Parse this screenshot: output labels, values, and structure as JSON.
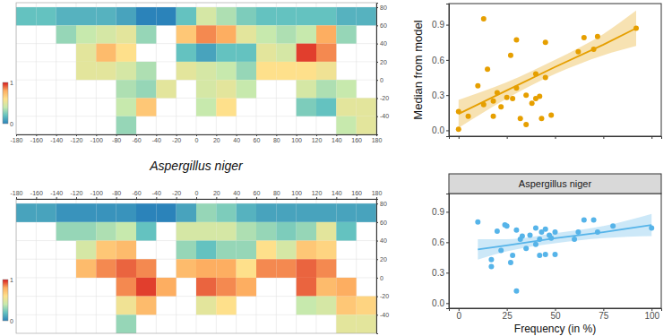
{
  "chart_data": [
    {
      "type": "heatmap",
      "xlim": [
        -180,
        180
      ],
      "ylim": [
        -60,
        85
      ],
      "xticks": [
        -180,
        -160,
        -140,
        -120,
        -100,
        -80,
        -60,
        -40,
        -20,
        0,
        20,
        40,
        60,
        80,
        100,
        120,
        140,
        160,
        180
      ],
      "yticks": [
        -40,
        -20,
        0,
        20,
        40,
        60,
        80
      ],
      "grid": true,
      "xbins": [
        -180,
        -160,
        -140,
        -120,
        -100,
        -80,
        -60,
        -40,
        -20,
        0,
        20,
        40,
        60,
        80,
        100,
        120,
        140,
        160,
        180
      ],
      "ybins": [
        80,
        60,
        40,
        20,
        0,
        -20,
        -40,
        -60
      ],
      "cells": [
        [
          0.2,
          0.2,
          0.15,
          0.15,
          0.15,
          0.1,
          0.0,
          0.0,
          0.2,
          0.45,
          0.35,
          0.25,
          0.2,
          0.2,
          0.2,
          0.2,
          0.15,
          0.15
        ],
        [
          null,
          null,
          0.3,
          0.4,
          0.45,
          0.5,
          0.3,
          null,
          0.7,
          0.85,
          0.8,
          0.5,
          0.4,
          0.35,
          0.4,
          0.8,
          0.3,
          null
        ],
        [
          null,
          null,
          null,
          0.5,
          0.75,
          0.6,
          null,
          null,
          0.2,
          0.1,
          0.2,
          0.2,
          0.5,
          0.45,
          0.95,
          0.85,
          null,
          null
        ],
        [
          null,
          null,
          null,
          0.5,
          0.5,
          0.45,
          0.35,
          null,
          0.5,
          0.45,
          0.4,
          0.3,
          0.6,
          0.6,
          0.6,
          0.55,
          null,
          null
        ],
        [
          null,
          null,
          null,
          null,
          null,
          0.35,
          0.3,
          0.5,
          null,
          0.45,
          0.5,
          0.4,
          null,
          null,
          0.45,
          0.35,
          0.4,
          null
        ],
        [
          null,
          null,
          null,
          null,
          null,
          0.4,
          0.7,
          null,
          null,
          0.4,
          0.6,
          null,
          null,
          null,
          0.25,
          0.2,
          0.5,
          0.5
        ],
        [
          null,
          null,
          null,
          null,
          null,
          0.3,
          null,
          null,
          null,
          null,
          null,
          null,
          null,
          null,
          null,
          null,
          0.4,
          0.5
        ]
      ],
      "colorbar_range": [
        0,
        1
      ],
      "colorbar_ticks": [
        0,
        1
      ]
    },
    {
      "type": "heatmap",
      "title": "Aspergillus niger",
      "xlim": [
        -180,
        180
      ],
      "ylim": [
        -60,
        85
      ],
      "xticks": [
        -180,
        -160,
        -140,
        -120,
        -100,
        -80,
        -60,
        -40,
        -20,
        0,
        20,
        40,
        60,
        80,
        100,
        120,
        140,
        160,
        180
      ],
      "yticks": [
        -40,
        -20,
        0,
        20,
        40,
        60,
        80
      ],
      "grid": true,
      "xbins": [
        -180,
        -160,
        -140,
        -120,
        -100,
        -80,
        -60,
        -40,
        -20,
        0,
        20,
        40,
        60,
        80,
        100,
        120,
        140,
        160,
        180
      ],
      "ybins": [
        80,
        60,
        40,
        20,
        0,
        -20,
        -40,
        -60
      ],
      "cells": [
        [
          0.1,
          0.1,
          0.05,
          0.05,
          0.05,
          0.05,
          0.0,
          0.0,
          0.1,
          0.3,
          0.25,
          0.15,
          0.1,
          0.1,
          0.1,
          0.1,
          0.1,
          0.1
        ],
        [
          null,
          null,
          0.3,
          0.3,
          0.35,
          0.4,
          0.2,
          null,
          0.45,
          0.45,
          0.45,
          0.35,
          0.3,
          0.25,
          0.3,
          0.5,
          0.2,
          null
        ],
        [
          null,
          null,
          null,
          0.45,
          0.7,
          0.75,
          null,
          null,
          0.3,
          0.2,
          0.3,
          0.3,
          0.6,
          0.45,
          0.7,
          0.65,
          null,
          null
        ],
        [
          null,
          null,
          null,
          0.75,
          0.85,
          0.9,
          0.85,
          null,
          0.75,
          0.8,
          0.8,
          0.6,
          0.85,
          0.85,
          0.9,
          0.85,
          null,
          null
        ],
        [
          null,
          null,
          null,
          null,
          null,
          0.85,
          0.95,
          0.8,
          null,
          0.9,
          0.85,
          0.8,
          null,
          null,
          0.9,
          0.75,
          0.8,
          null
        ],
        [
          null,
          null,
          null,
          null,
          null,
          0.55,
          0.75,
          null,
          null,
          0.5,
          0.6,
          null,
          null,
          null,
          0.4,
          0.45,
          0.7,
          0.65
        ],
        [
          null,
          null,
          null,
          null,
          null,
          0.3,
          null,
          null,
          null,
          null,
          null,
          null,
          null,
          null,
          null,
          null,
          0.5,
          0.5
        ]
      ],
      "colorbar_range": [
        0,
        1
      ],
      "colorbar_ticks": [
        0,
        1
      ]
    },
    {
      "type": "scatter",
      "ylabel": "Median from model",
      "xlim": [
        -5,
        105
      ],
      "ylim": [
        -0.05,
        1.08
      ],
      "xticks": [
        0,
        25,
        50,
        75,
        100
      ],
      "yticks": [
        {
          "value": 0,
          "label": "0.0"
        },
        0.3,
        0.6,
        0.9
      ],
      "tick_labels": "y",
      "series": [
        {
          "type": "scatter",
          "marker": "circle",
          "color": "#E69F00",
          "x": [
            0,
            0,
            5,
            10,
            13,
            13,
            15,
            18,
            18,
            20,
            22,
            25,
            27,
            28,
            30,
            30,
            32,
            35,
            35,
            38,
            40,
            40,
            42,
            43,
            45,
            45,
            48,
            62,
            65,
            70,
            72,
            92
          ],
          "values": [
            0.16,
            0.01,
            0.12,
            0.38,
            0.95,
            0.22,
            0.52,
            0.25,
            0.12,
            0.32,
            0.2,
            0.28,
            0.64,
            0.27,
            0.77,
            0.36,
            0.1,
            0.3,
            0.05,
            0.23,
            0.48,
            0.27,
            0.29,
            0.1,
            0.75,
            0.45,
            0.13,
            0.67,
            0.79,
            0.69,
            0.8,
            0.87
          ]
        },
        {
          "type": "line",
          "color": "#E69F00",
          "x": [
            0,
            25,
            50,
            75,
            92
          ],
          "values": [
            0.14,
            0.34,
            0.54,
            0.73,
            0.87
          ],
          "lower": [
            0.02,
            0.27,
            0.48,
            0.64,
            0.72
          ],
          "upper": [
            0.26,
            0.41,
            0.6,
            0.82,
            1.02
          ]
        }
      ]
    },
    {
      "type": "scatter",
      "title": "Aspergillus niger",
      "xlabel": "Frequency (in %)",
      "xlim": [
        -5,
        105
      ],
      "ylim": [
        -0.05,
        1.08
      ],
      "xticks": [
        0,
        25,
        50,
        75,
        100
      ],
      "yticks": [
        {
          "value": 0,
          "label": "0.0"
        },
        0.3,
        0.6,
        0.9
      ],
      "series": [
        {
          "type": "scatter",
          "marker": "circle",
          "color": "#56B4E9",
          "x": [
            10,
            17,
            17,
            20,
            22,
            24,
            25,
            27,
            28,
            30,
            30,
            32,
            33,
            35,
            37,
            40,
            40,
            42,
            42,
            43,
            45,
            45,
            47,
            48,
            50,
            50,
            60,
            62,
            65,
            70,
            72,
            80,
            100
          ],
          "values": [
            0.8,
            0.43,
            0.36,
            0.71,
            0.52,
            0.77,
            0.76,
            0.4,
            0.47,
            0.72,
            0.12,
            0.63,
            0.66,
            0.54,
            0.67,
            0.74,
            0.58,
            0.63,
            0.47,
            0.7,
            0.73,
            0.48,
            0.67,
            0.64,
            0.7,
            0.48,
            0.63,
            0.7,
            0.82,
            0.82,
            0.7,
            0.76,
            0.74
          ]
        },
        {
          "type": "line",
          "color": "#56B4E9",
          "x": [
            10,
            25,
            50,
            75,
            100
          ],
          "values": [
            0.53,
            0.57,
            0.64,
            0.7,
            0.77
          ],
          "lower": [
            0.43,
            0.51,
            0.59,
            0.64,
            0.66
          ],
          "upper": [
            0.63,
            0.63,
            0.69,
            0.76,
            0.88
          ]
        }
      ]
    }
  ]
}
